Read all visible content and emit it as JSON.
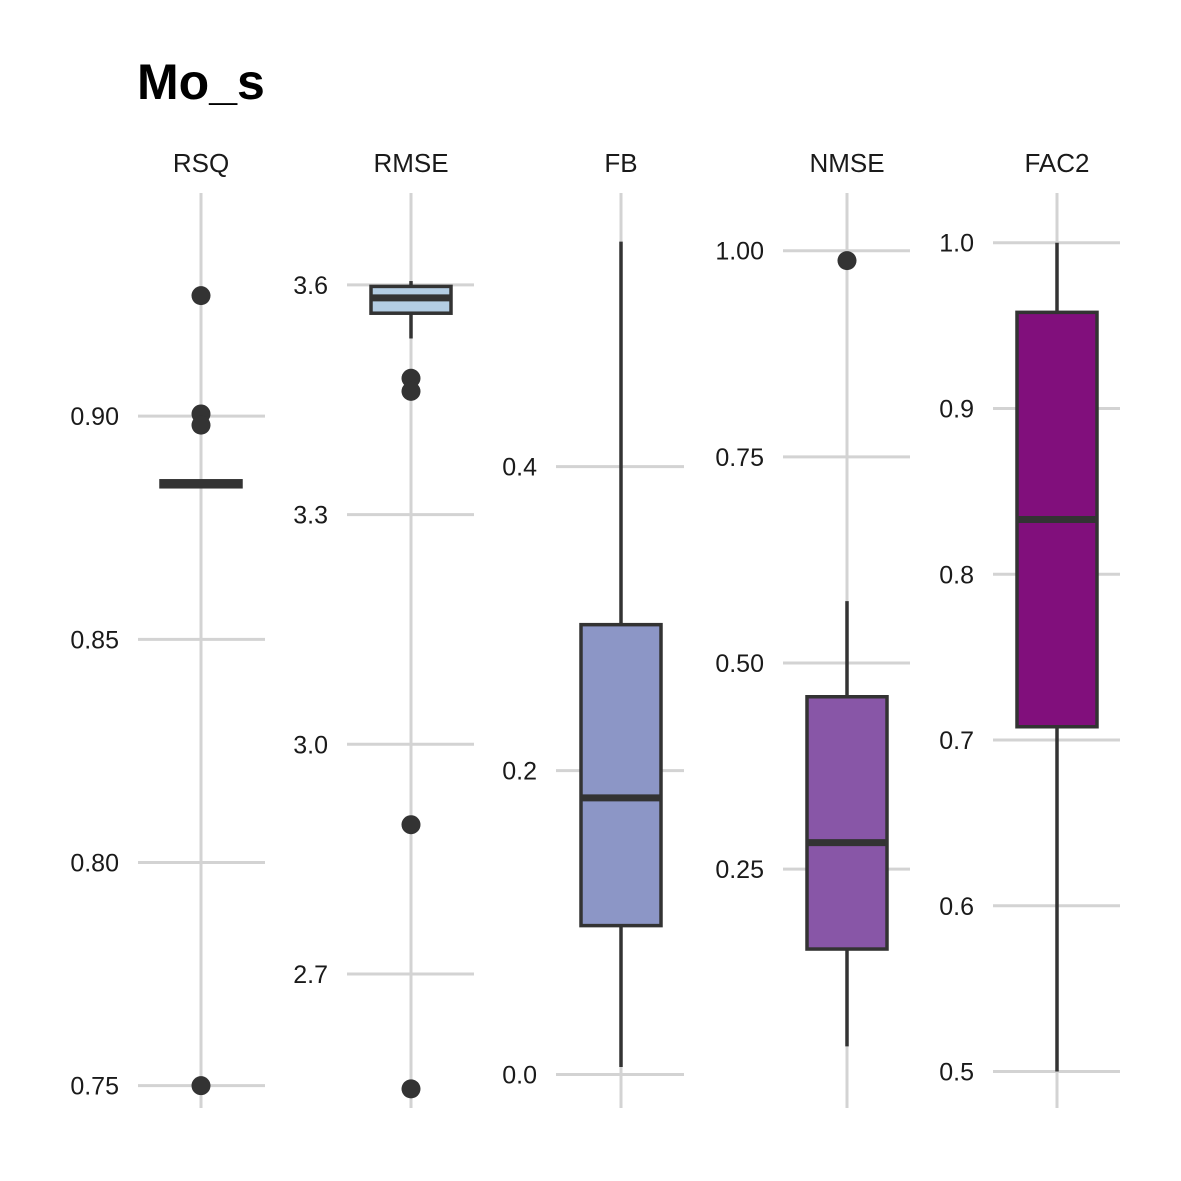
{
  "chart_data": {
    "type": "boxplot",
    "title": "Mo_s",
    "grid": true,
    "legend": "none",
    "panels": [
      {
        "name": "RSQ",
        "fill": "#2e2e2e",
        "ylim": [
          0.745,
          0.95
        ],
        "ticks": [
          0.75,
          0.8,
          0.85,
          0.9
        ],
        "tick_labels": [
          "0.75",
          "0.80",
          "0.85",
          "0.90"
        ],
        "box": {
          "q1": 0.8842,
          "median": 0.8848,
          "q3": 0.8855,
          "whisker_low": 0.8842,
          "whisker_high": 0.8855
        },
        "outliers": [
          0.927,
          0.9005,
          0.898,
          0.75
        ]
      },
      {
        "name": "RMSE",
        "fill": "#b3cde3",
        "ylim": [
          2.525,
          3.72
        ],
        "ticks": [
          2.7,
          3.0,
          3.3,
          3.6
        ],
        "tick_labels": [
          "2.7",
          "3.0",
          "3.3",
          "3.6"
        ],
        "box": {
          "q1": 3.563,
          "median": 3.583,
          "q3": 3.598,
          "whisker_low": 3.53,
          "whisker_high": 3.605
        },
        "outliers": [
          3.478,
          3.461,
          2.895,
          2.55
        ]
      },
      {
        "name": "FB",
        "fill": "#8c96c6",
        "ylim": [
          -0.022,
          0.58
        ],
        "ticks": [
          0.0,
          0.2,
          0.4
        ],
        "tick_labels": [
          "0.0",
          "0.2",
          "0.4"
        ],
        "box": {
          "q1": 0.098,
          "median": 0.182,
          "q3": 0.296,
          "whisker_low": 0.005,
          "whisker_high": 0.548
        },
        "outliers": []
      },
      {
        "name": "NMSE",
        "fill": "#8856a7",
        "ylim": [
          -0.0398,
          1.07
        ],
        "ticks": [
          0.25,
          0.5,
          0.75,
          1.0
        ],
        "tick_labels": [
          "0.25",
          "0.50",
          "0.75",
          "1.00"
        ],
        "box": {
          "q1": 0.153,
          "median": 0.282,
          "q3": 0.459,
          "whisker_low": 0.035,
          "whisker_high": 0.575
        },
        "outliers": [
          0.988
        ]
      },
      {
        "name": "FAC2",
        "fill": "#810f7c",
        "ylim": [
          0.478,
          1.03
        ],
        "ticks": [
          0.5,
          0.6,
          0.7,
          0.8,
          0.9,
          1.0
        ],
        "tick_labels": [
          "0.5",
          "0.6",
          "0.7",
          "0.8",
          "0.9",
          "1.0"
        ],
        "box": {
          "q1": 0.708,
          "median": 0.833,
          "q3": 0.958,
          "whisker_low": 0.5,
          "whisker_high": 1.0
        },
        "outliers": []
      }
    ]
  }
}
